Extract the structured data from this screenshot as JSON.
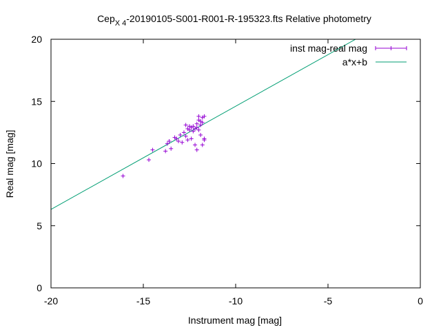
{
  "chart_data": {
    "type": "scatter",
    "title_main": "Cep",
    "title_sub": "X 4",
    "title_rest": "-20190105-S001-R001-R-195323.fts Relative photometry",
    "xlabel": "Instrument mag [mag]",
    "ylabel": "Real mag [mag]",
    "xlim": [
      -20,
      0
    ],
    "ylim": [
      0,
      20
    ],
    "xticks": [
      -20,
      -15,
      -10,
      -5,
      0
    ],
    "yticks": [
      0,
      5,
      10,
      15,
      20
    ],
    "grid": false,
    "legend_position": "top-right",
    "series": [
      {
        "name": "inst mag-real mag",
        "kind": "points",
        "color": "#9400d3",
        "points": [
          [
            -16.1,
            9.0
          ],
          [
            -14.7,
            10.3
          ],
          [
            -14.5,
            11.1
          ],
          [
            -13.8,
            11.0
          ],
          [
            -13.7,
            11.6
          ],
          [
            -13.6,
            11.8
          ],
          [
            -13.5,
            11.2
          ],
          [
            -13.3,
            12.1
          ],
          [
            -13.2,
            12.0
          ],
          [
            -13.1,
            11.8
          ],
          [
            -13.0,
            12.3
          ],
          [
            -12.9,
            11.7
          ],
          [
            -12.8,
            12.5
          ],
          [
            -12.7,
            13.1
          ],
          [
            -12.7,
            12.2
          ],
          [
            -12.6,
            12.8
          ],
          [
            -12.6,
            11.9
          ],
          [
            -12.5,
            13.0
          ],
          [
            -12.5,
            12.7
          ],
          [
            -12.4,
            12.9
          ],
          [
            -12.3,
            13.0
          ],
          [
            -12.3,
            12.6
          ],
          [
            -12.2,
            12.8
          ],
          [
            -12.2,
            11.5
          ],
          [
            -12.1,
            13.2
          ],
          [
            -12.1,
            12.9
          ],
          [
            -12.1,
            11.1
          ],
          [
            -12.0,
            13.5
          ],
          [
            -12.0,
            13.8
          ],
          [
            -12.0,
            12.7
          ],
          [
            -11.9,
            13.4
          ],
          [
            -11.9,
            13.1
          ],
          [
            -11.9,
            12.3
          ],
          [
            -11.8,
            13.7
          ],
          [
            -11.8,
            13.3
          ],
          [
            -11.8,
            11.5
          ],
          [
            -11.7,
            13.8
          ],
          [
            -11.7,
            12.0
          ],
          [
            -11.7,
            11.9
          ],
          [
            -12.4,
            12.0
          ]
        ]
      },
      {
        "name": "a*x+b",
        "kind": "line",
        "color": "#009e73",
        "slope": 0.8298,
        "intercept": 22.91
      }
    ]
  }
}
